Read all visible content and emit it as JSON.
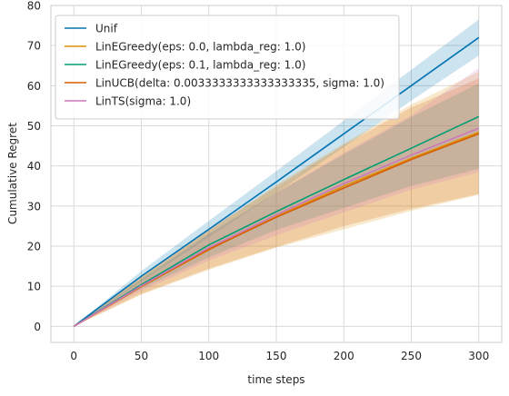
{
  "chart_data": {
    "type": "line",
    "xlabel": "time steps",
    "ylabel": "Cumulative Regret",
    "xlim": [
      -17,
      317
    ],
    "ylim": [
      -4,
      80
    ],
    "xticks": [
      0,
      50,
      100,
      150,
      200,
      250,
      300
    ],
    "yticks": [
      0,
      10,
      20,
      30,
      40,
      50,
      60,
      70,
      80
    ],
    "grid": true,
    "legend_position": "top-left",
    "series": [
      {
        "name": "Unif",
        "color": "#0173b2",
        "x": [
          0,
          50,
          100,
          150,
          200,
          250,
          300
        ],
        "y": [
          0,
          12.5,
          24.2,
          36,
          48,
          60,
          72
        ],
        "lower": [
          0,
          11.2,
          22.2,
          33.3,
          44.7,
          56.3,
          67.5
        ],
        "upper": [
          0,
          13.8,
          26.3,
          38.7,
          51.3,
          64,
          76.5
        ]
      },
      {
        "name": "LinEGreedy(eps: 0.0, lambda_reg: 1.0)",
        "color": "#de8f05",
        "x": [
          0,
          50,
          100,
          150,
          200,
          250,
          300
        ],
        "y": [
          0,
          9.9,
          19.1,
          27.4,
          35,
          41.9,
          48.4
        ],
        "lower": [
          0,
          7.9,
          14.1,
          19.6,
          24.2,
          28.8,
          32.8
        ],
        "upper": [
          0,
          12.3,
          23.8,
          35.3,
          45.6,
          55.3,
          63.5
        ]
      },
      {
        "name": "LinEGreedy(eps: 0.1, lambda_reg: 1.0)",
        "color": "#029e73",
        "x": [
          0,
          50,
          100,
          150,
          200,
          250,
          300
        ],
        "y": [
          0,
          10.4,
          20.3,
          28.6,
          36.6,
          44.4,
          52.3
        ],
        "lower": [
          0,
          9.4,
          17.2,
          24,
          29.5,
          35,
          39.3
        ],
        "upper": [
          0,
          11.8,
          23,
          33.3,
          42.9,
          52.2,
          60.6
        ]
      },
      {
        "name": "LinUCB(delta: 0.0033333333333333335, sigma: 1.0)",
        "color": "#d55e00",
        "x": [
          0,
          50,
          100,
          150,
          200,
          250,
          300
        ],
        "y": [
          0,
          10,
          19.2,
          27.2,
          34.5,
          41.6,
          48
        ],
        "lower": [
          0,
          8.1,
          14.4,
          19.8,
          25,
          29.3,
          33
        ],
        "upper": [
          0,
          12.2,
          24.1,
          34.8,
          45.2,
          54.6,
          61.8
        ]
      },
      {
        "name": "LinTS(sigma: 1.0)",
        "color": "#cc78bc",
        "x": [
          0,
          50,
          100,
          150,
          200,
          250,
          300
        ],
        "y": [
          0,
          10.1,
          19.6,
          27.8,
          35.6,
          42.7,
          49.4
        ],
        "lower": [
          0,
          8.8,
          16.4,
          22.7,
          28.4,
          34.1,
          38.4
        ],
        "upper": [
          0,
          11.5,
          23,
          33.3,
          43.3,
          52.6,
          64.4
        ]
      }
    ]
  }
}
